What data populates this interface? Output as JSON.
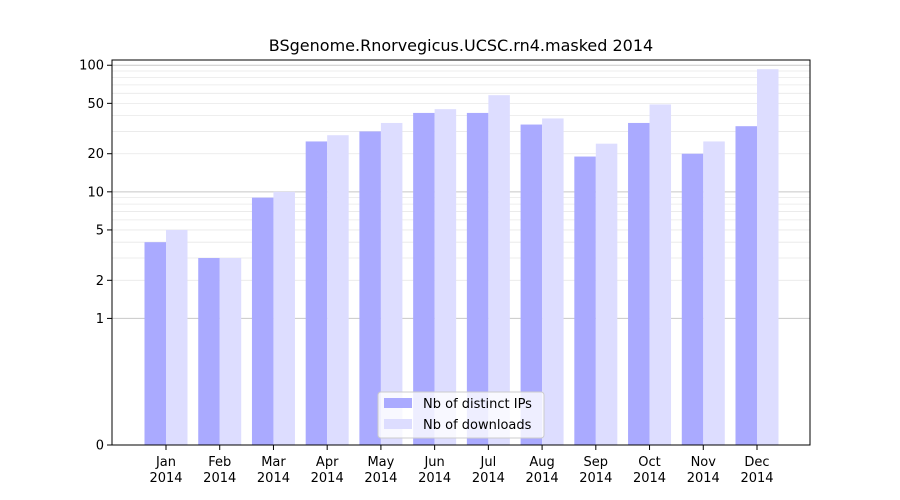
{
  "chart_data": {
    "type": "bar",
    "title": "BSgenome.Rnorvegicus.UCSC.rn4.masked 2014",
    "xlabel": "",
    "ylabel": "",
    "y_scale": "symlog",
    "ylim": [
      0,
      110
    ],
    "yticks": [
      0,
      1,
      2,
      5,
      10,
      20,
      50,
      100
    ],
    "grid": true,
    "legend_position": "bottom-center",
    "categories": [
      [
        "Jan",
        "2014"
      ],
      [
        "Feb",
        "2014"
      ],
      [
        "Mar",
        "2014"
      ],
      [
        "Apr",
        "2014"
      ],
      [
        "May",
        "2014"
      ],
      [
        "Jun",
        "2014"
      ],
      [
        "Jul",
        "2014"
      ],
      [
        "Aug",
        "2014"
      ],
      [
        "Sep",
        "2014"
      ],
      [
        "Oct",
        "2014"
      ],
      [
        "Nov",
        "2014"
      ],
      [
        "Dec",
        "2014"
      ]
    ],
    "series": [
      {
        "name": "Nb of distinct IPs",
        "color": "#aaaaff",
        "values": [
          4,
          3,
          9,
          25,
          30,
          42,
          42,
          34,
          19,
          35,
          20,
          33
        ]
      },
      {
        "name": "Nb of downloads",
        "color": "#ddddff",
        "values": [
          5,
          3,
          10,
          28,
          35,
          45,
          58,
          38,
          24,
          49,
          25,
          93
        ]
      }
    ]
  }
}
